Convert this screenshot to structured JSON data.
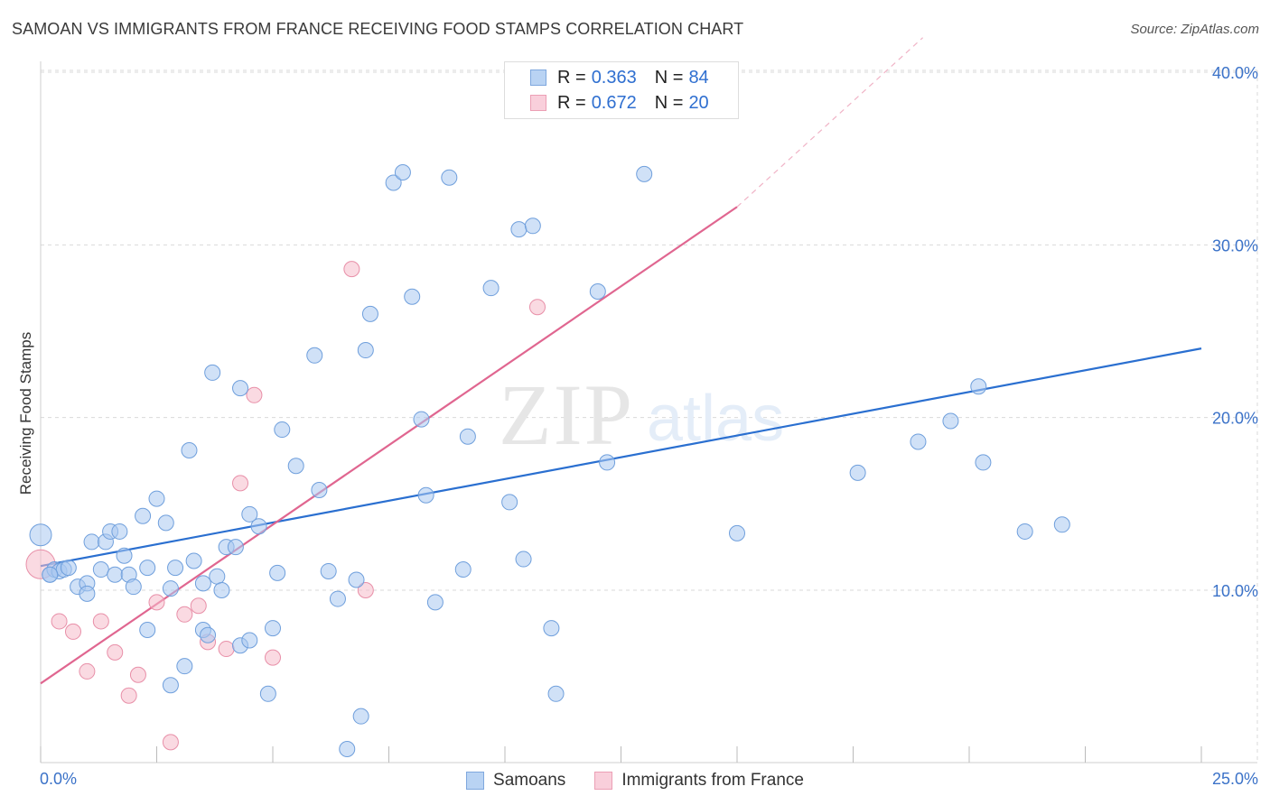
{
  "header": {
    "title": "SAMOAN VS IMMIGRANTS FROM FRANCE RECEIVING FOOD STAMPS CORRELATION CHART",
    "source": "Source: ZipAtlas.com"
  },
  "watermark": {
    "zip": "ZIP",
    "atlas": "atlas"
  },
  "legend": {
    "rows": [
      {
        "r_label": "R =",
        "r_value": "0.363",
        "n_label": "N =",
        "n_value": "84"
      },
      {
        "r_label": "R =",
        "r_value": "0.672",
        "n_label": "N =",
        "n_value": "20"
      }
    ]
  },
  "bottom_legend": {
    "samoans": "Samoans",
    "france": "Immigrants from France"
  },
  "colors": {
    "samoan_fill": "#a9c8f0",
    "samoan_stroke": "#6f9fdc",
    "samoan_line": "#2a6fd0",
    "france_fill": "#f6bccb",
    "france_stroke": "#e88fa8",
    "france_line": "#e06690",
    "grid": "#d9d9d9",
    "tick_text": "#3b72c8"
  },
  "chart_data": {
    "type": "scatter",
    "title": "SAMOAN VS IMMIGRANTS FROM FRANCE RECEIVING FOOD STAMPS CORRELATION CHART",
    "xlabel": "",
    "ylabel": "Receiving Food Stamps",
    "xlim": [
      0,
      25
    ],
    "ylim": [
      0,
      42
    ],
    "x_tick_labels": [
      "0.0%",
      "25.0%"
    ],
    "y_ticks": [
      10,
      20,
      30,
      40
    ],
    "y_tick_labels": [
      "10.0%",
      "20.0%",
      "30.0%",
      "40.0%"
    ],
    "grid": true,
    "series": [
      {
        "name": "Samoans",
        "r": 0.363,
        "n": 84,
        "trend": {
          "x0": 0.0,
          "y0": 11.4,
          "x1": 25.0,
          "y1": 24.0
        },
        "points": [
          [
            0.0,
            13.2
          ],
          [
            0.2,
            10.9
          ],
          [
            0.3,
            11.2
          ],
          [
            0.4,
            11.1
          ],
          [
            0.5,
            11.2
          ],
          [
            0.6,
            11.3
          ],
          [
            0.8,
            10.2
          ],
          [
            1.0,
            10.4
          ],
          [
            1.0,
            9.8
          ],
          [
            1.1,
            12.8
          ],
          [
            1.3,
            11.2
          ],
          [
            1.4,
            12.8
          ],
          [
            1.5,
            13.4
          ],
          [
            1.6,
            10.9
          ],
          [
            1.7,
            13.4
          ],
          [
            1.8,
            12.0
          ],
          [
            1.9,
            10.9
          ],
          [
            2.0,
            10.2
          ],
          [
            2.2,
            14.3
          ],
          [
            2.3,
            11.3
          ],
          [
            2.3,
            7.7
          ],
          [
            2.5,
            15.3
          ],
          [
            2.7,
            13.9
          ],
          [
            2.8,
            10.1
          ],
          [
            2.8,
            4.5
          ],
          [
            2.9,
            11.3
          ],
          [
            3.1,
            5.6
          ],
          [
            3.2,
            18.1
          ],
          [
            3.3,
            11.7
          ],
          [
            3.5,
            10.4
          ],
          [
            3.5,
            7.7
          ],
          [
            3.6,
            7.4
          ],
          [
            3.7,
            22.6
          ],
          [
            3.8,
            10.8
          ],
          [
            3.9,
            10.0
          ],
          [
            4.0,
            12.5
          ],
          [
            4.2,
            12.5
          ],
          [
            4.3,
            21.7
          ],
          [
            4.3,
            6.8
          ],
          [
            4.5,
            14.4
          ],
          [
            4.5,
            7.1
          ],
          [
            4.7,
            13.7
          ],
          [
            4.9,
            4.0
          ],
          [
            5.0,
            7.8
          ],
          [
            5.1,
            11.0
          ],
          [
            5.2,
            19.3
          ],
          [
            5.5,
            17.2
          ],
          [
            5.9,
            23.6
          ],
          [
            6.0,
            15.8
          ],
          [
            6.2,
            11.1
          ],
          [
            6.4,
            9.5
          ],
          [
            6.6,
            0.8
          ],
          [
            6.8,
            10.6
          ],
          [
            6.9,
            2.7
          ],
          [
            7.0,
            23.9
          ],
          [
            7.1,
            26.0
          ],
          [
            7.6,
            33.6
          ],
          [
            7.8,
            34.2
          ],
          [
            8.0,
            27.0
          ],
          [
            8.2,
            19.9
          ],
          [
            8.3,
            15.5
          ],
          [
            8.5,
            9.3
          ],
          [
            8.8,
            33.9
          ],
          [
            9.1,
            11.2
          ],
          [
            9.2,
            18.9
          ],
          [
            9.7,
            27.5
          ],
          [
            10.1,
            15.1
          ],
          [
            10.3,
            30.9
          ],
          [
            10.4,
            11.8
          ],
          [
            10.6,
            31.1
          ],
          [
            11.0,
            7.8
          ],
          [
            11.1,
            4.0
          ],
          [
            12.0,
            27.3
          ],
          [
            12.2,
            17.4
          ],
          [
            13.0,
            34.1
          ],
          [
            15.0,
            13.3
          ],
          [
            17.6,
            16.8
          ],
          [
            18.9,
            18.6
          ],
          [
            19.6,
            19.8
          ],
          [
            20.2,
            21.8
          ],
          [
            20.3,
            17.4
          ],
          [
            21.2,
            13.4
          ],
          [
            22.0,
            13.8
          ],
          [
            0.2,
            10.9
          ]
        ]
      },
      {
        "name": "Immigrants from France",
        "r": 0.672,
        "n": 20,
        "trend": {
          "x0": 0.0,
          "y0": 4.6,
          "x1": 15.0,
          "y1": 32.2,
          "dash_x1": 19.0,
          "dash_y1": 42.0
        },
        "points": [
          [
            0.0,
            11.5
          ],
          [
            0.4,
            8.2
          ],
          [
            0.7,
            7.6
          ],
          [
            1.0,
            5.3
          ],
          [
            1.3,
            8.2
          ],
          [
            1.6,
            6.4
          ],
          [
            1.9,
            3.9
          ],
          [
            2.1,
            5.1
          ],
          [
            2.5,
            9.3
          ],
          [
            2.8,
            1.2
          ],
          [
            3.1,
            8.6
          ],
          [
            3.4,
            9.1
          ],
          [
            3.6,
            7.0
          ],
          [
            4.0,
            6.6
          ],
          [
            4.3,
            16.2
          ],
          [
            4.6,
            21.3
          ],
          [
            5.0,
            6.1
          ],
          [
            6.7,
            28.6
          ],
          [
            7.0,
            10.0
          ],
          [
            10.7,
            26.4
          ]
        ]
      }
    ]
  }
}
